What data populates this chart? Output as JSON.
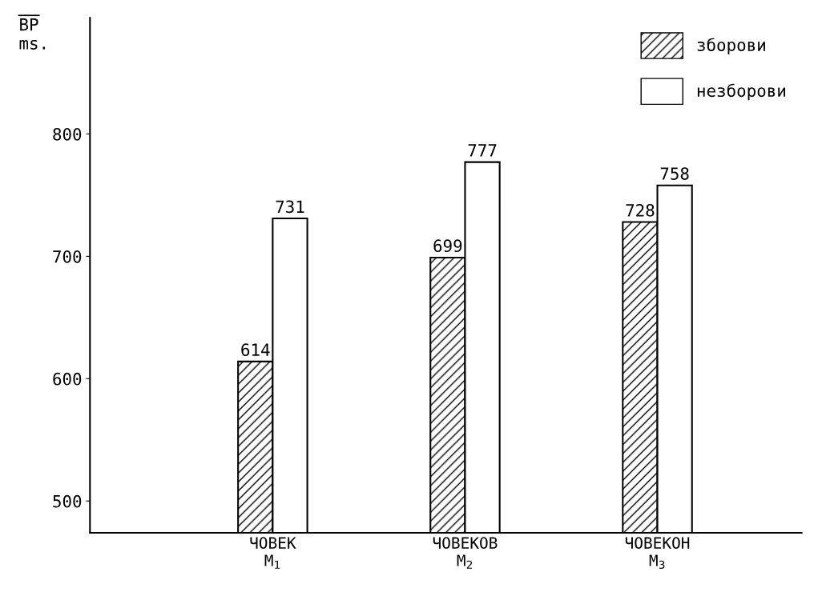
{
  "chart_data": {
    "type": "bar",
    "ylabel": "ВР\nms.",
    "categories": [
      "ЧОВЕК\nM$_{1}$",
      "ЧОВЕКОВ\nM$_{2}$",
      "ЧОВЕКОН\nM$_{3}$"
    ],
    "series": [
      {
        "name": "зборови",
        "color": "#000000",
        "values": [
          614,
          699,
          728
        ]
      },
      {
        "name": "незборови",
        "color": "#ffffff",
        "values": [
          731,
          777,
          758
        ]
      }
    ],
    "ylim": [
      474,
      895
    ],
    "yticks": [
      500,
      600,
      700,
      800
    ],
    "data_labels": true,
    "grid": false,
    "legend": "top right"
  }
}
